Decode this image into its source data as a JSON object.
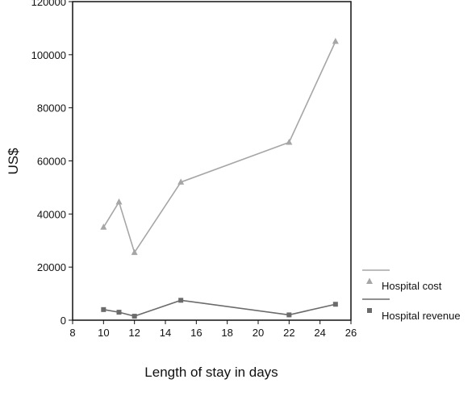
{
  "chart_data": {
    "type": "line",
    "title": "",
    "xlabel": "Length of stay in days",
    "ylabel": "US$",
    "xlim": [
      8,
      26
    ],
    "ylim": [
      0,
      120000
    ],
    "x_ticks": [
      "8",
      "10",
      "12",
      "14",
      "16",
      "18",
      "20",
      "22",
      "24",
      "26"
    ],
    "y_ticks": [
      "0",
      "20000",
      "40000",
      "60000",
      "80000",
      "100000",
      "120000"
    ],
    "grid": false,
    "legend_position": "right-bottom",
    "series": [
      {
        "name": "Hospital cost",
        "color": "#a6a6a6",
        "marker": "triangle",
        "x": [
          10,
          11,
          12,
          15,
          22,
          25
        ],
        "y": [
          35000,
          44500,
          25500,
          52000,
          67000,
          105000
        ]
      },
      {
        "name": "Hospital revenue",
        "color": "#6b6b6b",
        "marker": "square",
        "x": [
          10,
          11,
          12,
          15,
          22,
          25
        ],
        "y": [
          4000,
          3000,
          1500,
          7500,
          2000,
          6000
        ]
      }
    ]
  }
}
